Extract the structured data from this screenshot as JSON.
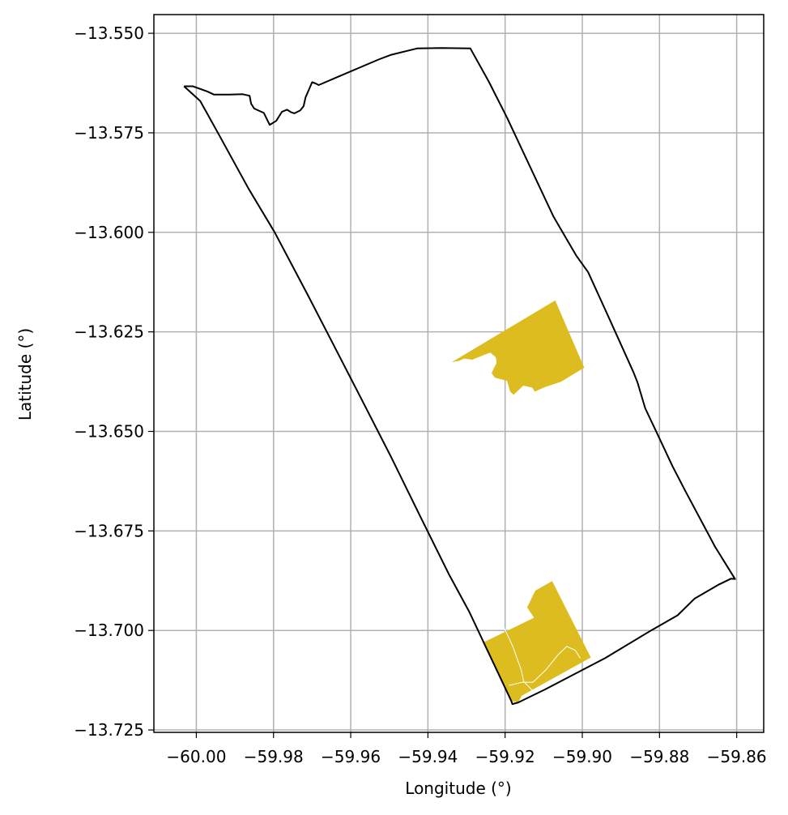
{
  "chart_data": {
    "type": "map",
    "xlabel": "Longitude (°)",
    "ylabel": "Latitude (°)",
    "xlim": [
      -60.011,
      -59.853
    ],
    "ylim": [
      -13.7256,
      -13.5453
    ],
    "grid": true,
    "x_ticks": [
      -60.0,
      -59.98,
      -59.96,
      -59.94,
      -59.92,
      -59.9,
      -59.88,
      -59.86
    ],
    "x_tick_labels": [
      "−60.00",
      "−59.98",
      "−59.96",
      "−59.94",
      "−59.92",
      "−59.90",
      "−59.88",
      "−59.86"
    ],
    "y_ticks": [
      -13.55,
      -13.575,
      -13.6,
      -13.625,
      -13.65,
      -13.675,
      -13.7,
      -13.725
    ],
    "y_tick_labels": [
      "−13.550",
      "−13.575",
      "−13.600",
      "−13.625",
      "−13.650",
      "−13.675",
      "−13.700",
      "−13.725"
    ],
    "colors": {
      "boundary": "#000000",
      "fill": "#dcbc1f",
      "inner_lines": "#ffffff",
      "grid": "#b0b0b0"
    },
    "layers": [
      {
        "type": "boundary",
        "coordinates": [
          [
            -60.0032,
            -13.5633
          ],
          [
            -60.0009,
            -13.5633
          ],
          [
            -59.9972,
            -13.5646
          ],
          [
            -59.9954,
            -13.5654
          ],
          [
            -59.9914,
            -13.5654
          ],
          [
            -59.988,
            -13.5653
          ],
          [
            -59.9862,
            -13.5657
          ],
          [
            -59.9858,
            -13.5677
          ],
          [
            -59.985,
            -13.5689
          ],
          [
            -59.9825,
            -13.57
          ],
          [
            -59.981,
            -13.573
          ],
          [
            -59.9793,
            -13.572
          ],
          [
            -59.9778,
            -13.5697
          ],
          [
            -59.9765,
            -13.5692
          ],
          [
            -59.9755,
            -13.5698
          ],
          [
            -59.9746,
            -13.5701
          ],
          [
            -59.9731,
            -13.5694
          ],
          [
            -59.9722,
            -13.5683
          ],
          [
            -59.9717,
            -13.5661
          ],
          [
            -59.97,
            -13.5623
          ],
          [
            -59.9691,
            -13.5626
          ],
          [
            -59.9683,
            -13.563
          ],
          [
            -59.9635,
            -13.561
          ],
          [
            -59.9528,
            -13.5566
          ],
          [
            -59.9495,
            -13.5554
          ],
          [
            -59.9428,
            -13.5538
          ],
          [
            -59.9364,
            -13.5537
          ],
          [
            -59.929,
            -13.5538
          ],
          [
            -59.9242,
            -13.5622
          ],
          [
            -59.9195,
            -13.5712
          ],
          [
            -59.9075,
            -13.596
          ],
          [
            -59.9016,
            -13.6058
          ],
          [
            -59.8985,
            -13.61
          ],
          [
            -59.893,
            -13.6217
          ],
          [
            -59.8868,
            -13.635
          ],
          [
            -59.8857,
            -13.6377
          ],
          [
            -59.8837,
            -13.6442
          ],
          [
            -59.8812,
            -13.6493
          ],
          [
            -59.8766,
            -13.6588
          ],
          [
            -59.8733,
            -13.665
          ],
          [
            -59.8656,
            -13.679
          ],
          [
            -59.8604,
            -13.6871
          ],
          [
            -59.8615,
            -13.687
          ],
          [
            -59.8647,
            -13.6885
          ],
          [
            -59.8709,
            -13.692
          ],
          [
            -59.8753,
            -13.6962
          ],
          [
            -59.882,
            -13.6999
          ],
          [
            -59.894,
            -13.7069
          ],
          [
            -59.9096,
            -13.7148
          ],
          [
            -59.9166,
            -13.7181
          ],
          [
            -59.9181,
            -13.7185
          ],
          [
            -59.9184,
            -13.7177
          ],
          [
            -59.9293,
            -13.6953
          ],
          [
            -59.9345,
            -13.686
          ],
          [
            -59.942,
            -13.6713
          ],
          [
            -59.9495,
            -13.6565
          ],
          [
            -59.9582,
            -13.64
          ],
          [
            -59.9647,
            -13.6278
          ],
          [
            -59.9713,
            -13.6154
          ],
          [
            -59.9797,
            -13.6
          ],
          [
            -59.9865,
            -13.589
          ],
          [
            -59.9935,
            -13.5766
          ],
          [
            -59.999,
            -13.567
          ],
          [
            -60.0032,
            -13.5633
          ]
        ]
      },
      {
        "type": "polygon",
        "coordinates": [
          [
            -59.9338,
            -13.6326
          ],
          [
            -59.907,
            -13.6171
          ],
          [
            -59.8995,
            -13.634
          ],
          [
            -59.9055,
            -13.6375
          ],
          [
            -59.91,
            -13.639
          ],
          [
            -59.9123,
            -13.64
          ],
          [
            -59.913,
            -13.639
          ],
          [
            -59.9153,
            -13.6385
          ],
          [
            -59.9178,
            -13.6408
          ],
          [
            -59.9187,
            -13.64
          ],
          [
            -59.9195,
            -13.6373
          ],
          [
            -59.9226,
            -13.6365
          ],
          [
            -59.9235,
            -13.6354
          ],
          [
            -59.923,
            -13.6343
          ],
          [
            -59.9222,
            -13.6328
          ],
          [
            -59.9224,
            -13.6314
          ],
          [
            -59.9238,
            -13.6302
          ],
          [
            -59.925,
            -13.6306
          ],
          [
            -59.9273,
            -13.6315
          ],
          [
            -59.9285,
            -13.632
          ],
          [
            -59.9306,
            -13.6317
          ],
          [
            -59.932,
            -13.6323
          ],
          [
            -59.9338,
            -13.6326
          ]
        ]
      },
      {
        "type": "polygon",
        "coordinates": [
          [
            -59.9258,
            -13.7031
          ],
          [
            -59.9125,
            -13.6968
          ],
          [
            -59.9143,
            -13.6942
          ],
          [
            -59.9122,
            -13.69
          ],
          [
            -59.9078,
            -13.6876
          ],
          [
            -59.8978,
            -13.7068
          ],
          [
            -59.9157,
            -13.7164
          ],
          [
            -59.9166,
            -13.7181
          ],
          [
            -59.9184,
            -13.7177
          ],
          [
            -59.9258,
            -13.7031
          ]
        ]
      },
      {
        "type": "inner_line",
        "coordinates": [
          [
            -59.9205,
            -13.6988
          ],
          [
            -59.918,
            -13.704
          ],
          [
            -59.9158,
            -13.71
          ],
          [
            -59.9152,
            -13.7128
          ],
          [
            -59.913,
            -13.715
          ]
        ]
      },
      {
        "type": "inner_line",
        "coordinates": [
          [
            -59.919,
            -13.7138
          ],
          [
            -59.9155,
            -13.713
          ],
          [
            -59.9128,
            -13.713
          ],
          [
            -59.9095,
            -13.71
          ],
          [
            -59.9062,
            -13.706
          ],
          [
            -59.904,
            -13.704
          ],
          [
            -59.9018,
            -13.705
          ],
          [
            -59.9005,
            -13.707
          ]
        ]
      }
    ]
  }
}
